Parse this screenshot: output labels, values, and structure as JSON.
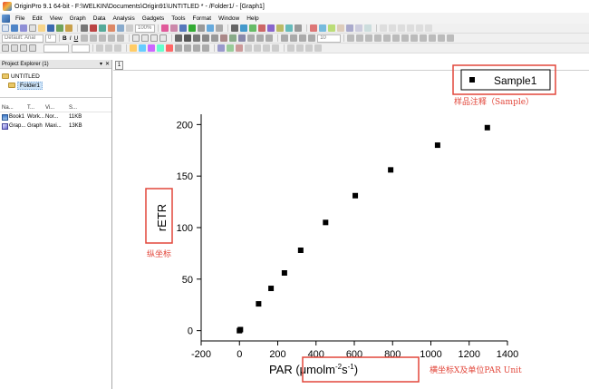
{
  "window": {
    "title": "OriginPro 9.1 64-bit - F:\\WELKIN\\Documents\\Origin91\\UNTITLED * - /Folder1/ - [Graph1]"
  },
  "menu": {
    "items": [
      "File",
      "Edit",
      "View",
      "Graph",
      "Data",
      "Analysis",
      "Gadgets",
      "Tools",
      "Format",
      "Window",
      "Help"
    ]
  },
  "toolbar": {
    "zoom_value": "100%",
    "font_name": "Default: Arial",
    "font_size": "0",
    "size_value": "10"
  },
  "explorer": {
    "title": "Project Explorer (1)",
    "root_folder": "UNTITLED",
    "child_folder": "Folder1",
    "columns": [
      "Na...",
      "T...",
      "Vi...",
      "S..."
    ],
    "files": [
      {
        "name": "Book1",
        "type": "Work...",
        "view": "Nor...",
        "size": "11KB"
      },
      {
        "name": "Grap...",
        "type": "Graph",
        "view": "Maxi...",
        "size": "13KB"
      }
    ]
  },
  "workspace": {
    "tab_label": "1"
  },
  "annotations": {
    "legend_note": "样品注释（Sample）",
    "y_note": "纵坐标",
    "x_note": "横坐标X及单位PAR Unit"
  },
  "colors": {
    "annotation_red": "#e2463a",
    "marker": "#000000"
  },
  "chart_data": {
    "type": "scatter",
    "x_ticks": [
      "-200",
      "0",
      "200",
      "400",
      "600",
      "800",
      "1000",
      "1200",
      "1400"
    ],
    "y_ticks": [
      "0",
      "50",
      "100",
      "150",
      "200"
    ],
    "xlim": [
      -200,
      1400
    ],
    "ylim": [
      -10,
      210
    ],
    "xlabel_main": "PAR (μmolm",
    "xlabel_sup1": "-2",
    "xlabel_mid": "s",
    "xlabel_sup2": "-1",
    "xlabel_end": ")",
    "ylabel": "rETR",
    "legend": "Sample1",
    "legend_position": "top-right",
    "grid": false,
    "series": [
      {
        "name": "Sample1",
        "x": [
          0,
          5,
          100,
          165,
          235,
          320,
          450,
          605,
          790,
          1035,
          1295
        ],
        "y": [
          0,
          1,
          26,
          41,
          56,
          78,
          105,
          131,
          156,
          180,
          197
        ]
      }
    ]
  }
}
